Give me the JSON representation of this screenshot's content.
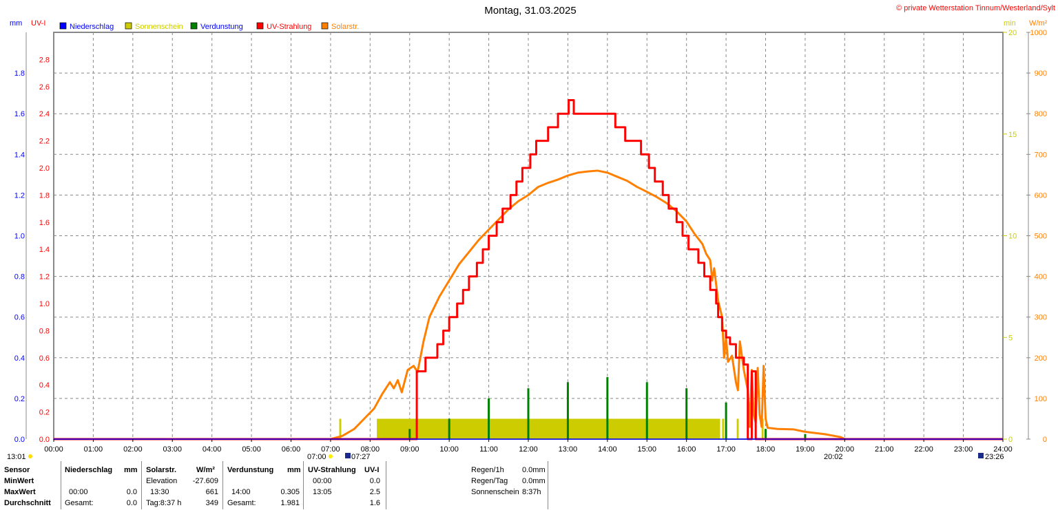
{
  "title": "Montag, 31.03.2025",
  "copyright": "© private Wetterstation Tinnum/Westerland/Sylt",
  "axis_units": {
    "mm": "mm",
    "uv": "UV-I",
    "min": "min",
    "wm2": "W/m²"
  },
  "legend": [
    {
      "label": "Niederschlag",
      "color": "#0000ff",
      "text_color": "#0000ff"
    },
    {
      "label": "Sonnenschein",
      "color": "#cccc00",
      "text_color": "#cccc00"
    },
    {
      "label": "Verdunstung",
      "color": "#008000",
      "text_color": "#0000ff"
    },
    {
      "label": "UV-Strahlung",
      "color": "#ff0000",
      "text_color": "#ff0000"
    },
    {
      "label": "Solarstr.",
      "color": "#ff8000",
      "text_color": "#ff8000"
    }
  ],
  "chart_data": {
    "type": "line",
    "title": "Montag, 31.03.2025",
    "x_range_hours": [
      0,
      24
    ],
    "x_ticks": [
      "00:00",
      "01:00",
      "02:00",
      "03:00",
      "04:00",
      "05:00",
      "06:00",
      "07:00",
      "08:00",
      "09:00",
      "10:00",
      "11:00",
      "12:00",
      "13:00",
      "14:00",
      "15:00",
      "16:00",
      "17:00",
      "18:00",
      "19:00",
      "20:00",
      "21:00",
      "22:00",
      "23:00",
      "24:00"
    ],
    "y_axes": {
      "mm": {
        "range": [
          0,
          2.0
        ],
        "ticks": [
          "0.0",
          "0.2",
          "0.4",
          "0.6",
          "0.8",
          "1.0",
          "1.2",
          "1.4",
          "1.6",
          "1.8"
        ]
      },
      "uv": {
        "range": [
          0,
          3.0
        ],
        "ticks": [
          "0.0",
          "0.2",
          "0.4",
          "0.6",
          "0.8",
          "1.0",
          "1.2",
          "1.4",
          "1.6",
          "1.8",
          "2.0",
          "2.2",
          "2.4",
          "2.6",
          "2.8"
        ]
      },
      "min": {
        "range": [
          0,
          20
        ],
        "ticks": [
          "0",
          "5",
          "10",
          "15",
          "20"
        ]
      },
      "wm2": {
        "range": [
          0,
          1000
        ],
        "ticks": [
          "0",
          "100",
          "200",
          "300",
          "400",
          "500",
          "600",
          "700",
          "800",
          "900",
          "1000"
        ]
      }
    },
    "grid": true,
    "series": [
      {
        "name": "Solarstr.",
        "axis": "wm2",
        "color": "#ff8000",
        "points": [
          [
            0,
            0
          ],
          [
            7.0,
            0
          ],
          [
            7.3,
            8
          ],
          [
            7.6,
            25
          ],
          [
            7.9,
            55
          ],
          [
            8.1,
            75
          ],
          [
            8.3,
            110
          ],
          [
            8.5,
            140
          ],
          [
            8.6,
            125
          ],
          [
            8.7,
            145
          ],
          [
            8.8,
            115
          ],
          [
            8.95,
            170
          ],
          [
            9.1,
            180
          ],
          [
            9.2,
            165
          ],
          [
            9.35,
            240
          ],
          [
            9.5,
            300
          ],
          [
            9.75,
            350
          ],
          [
            10.0,
            390
          ],
          [
            10.25,
            430
          ],
          [
            10.5,
            460
          ],
          [
            10.75,
            490
          ],
          [
            11.0,
            515
          ],
          [
            11.25,
            540
          ],
          [
            11.5,
            565
          ],
          [
            11.75,
            585
          ],
          [
            12.0,
            600
          ],
          [
            12.25,
            620
          ],
          [
            12.5,
            630
          ],
          [
            12.75,
            638
          ],
          [
            13.0,
            648
          ],
          [
            13.25,
            655
          ],
          [
            13.5,
            658
          ],
          [
            13.75,
            660
          ],
          [
            14.0,
            655
          ],
          [
            14.25,
            645
          ],
          [
            14.5,
            635
          ],
          [
            14.75,
            620
          ],
          [
            15.0,
            608
          ],
          [
            15.25,
            595
          ],
          [
            15.5,
            580
          ],
          [
            15.75,
            560
          ],
          [
            16.0,
            535
          ],
          [
            16.2,
            505
          ],
          [
            16.4,
            480
          ],
          [
            16.5,
            455
          ],
          [
            16.6,
            440
          ],
          [
            16.65,
            390
          ],
          [
            16.7,
            420
          ],
          [
            16.8,
            340
          ],
          [
            16.9,
            300
          ],
          [
            16.95,
            200
          ],
          [
            17.0,
            250
          ],
          [
            17.05,
            190
          ],
          [
            17.15,
            205
          ],
          [
            17.25,
            140
          ],
          [
            17.3,
            120
          ],
          [
            17.35,
            240
          ],
          [
            17.45,
            170
          ],
          [
            17.55,
            120
          ],
          [
            17.6,
            30
          ],
          [
            17.65,
            170
          ],
          [
            17.7,
            60
          ],
          [
            17.75,
            40
          ],
          [
            17.8,
            175
          ],
          [
            17.85,
            60
          ],
          [
            17.9,
            30
          ],
          [
            17.95,
            180
          ],
          [
            18.0,
            50
          ],
          [
            18.05,
            28
          ],
          [
            18.3,
            25
          ],
          [
            18.7,
            24
          ],
          [
            19.0,
            18
          ],
          [
            19.5,
            12
          ],
          [
            19.9,
            5
          ],
          [
            20.0,
            0
          ],
          [
            24,
            0
          ]
        ]
      },
      {
        "name": "UV-Strahlung",
        "axis": "uv",
        "color": "#ff0000",
        "step": true,
        "points": [
          [
            0,
            0
          ],
          [
            9.15,
            0
          ],
          [
            9.18,
            0.5
          ],
          [
            9.4,
            0.6
          ],
          [
            9.7,
            0.7
          ],
          [
            9.85,
            0.8
          ],
          [
            10.0,
            0.9
          ],
          [
            10.2,
            1.0
          ],
          [
            10.35,
            1.1
          ],
          [
            10.5,
            1.2
          ],
          [
            10.7,
            1.3
          ],
          [
            10.85,
            1.4
          ],
          [
            11.0,
            1.5
          ],
          [
            11.2,
            1.6
          ],
          [
            11.35,
            1.7
          ],
          [
            11.55,
            1.8
          ],
          [
            11.7,
            1.9
          ],
          [
            11.85,
            2.0
          ],
          [
            12.05,
            2.1
          ],
          [
            12.2,
            2.2
          ],
          [
            12.5,
            2.3
          ],
          [
            12.75,
            2.4
          ],
          [
            13.02,
            2.5
          ],
          [
            13.15,
            2.4
          ],
          [
            14.2,
            2.3
          ],
          [
            14.45,
            2.2
          ],
          [
            14.85,
            2.1
          ],
          [
            15.05,
            2.0
          ],
          [
            15.2,
            1.9
          ],
          [
            15.4,
            1.8
          ],
          [
            15.55,
            1.7
          ],
          [
            15.75,
            1.6
          ],
          [
            15.9,
            1.5
          ],
          [
            16.05,
            1.4
          ],
          [
            16.3,
            1.3
          ],
          [
            16.45,
            1.2
          ],
          [
            16.6,
            1.1
          ],
          [
            16.75,
            1.0
          ],
          [
            16.8,
            0.9
          ],
          [
            16.9,
            0.8
          ],
          [
            17.0,
            0.75
          ],
          [
            17.1,
            0.7
          ],
          [
            17.25,
            0.6
          ],
          [
            17.45,
            0.55
          ],
          [
            17.55,
            0.0
          ],
          [
            17.65,
            0.5
          ],
          [
            17.75,
            0.0
          ],
          [
            24,
            0
          ]
        ]
      },
      {
        "name": "Verdunstung",
        "axis": "mm",
        "color": "#008000",
        "type": "bar",
        "points": [
          [
            9,
            0.05
          ],
          [
            10,
            0.1
          ],
          [
            11,
            0.2
          ],
          [
            12,
            0.25
          ],
          [
            13,
            0.28
          ],
          [
            14,
            0.305
          ],
          [
            15,
            0.28
          ],
          [
            16,
            0.25
          ],
          [
            17,
            0.18
          ],
          [
            18,
            0.05
          ],
          [
            19,
            0.025
          ]
        ]
      },
      {
        "name": "Sonnenschein",
        "axis": "min",
        "color": "#cccc00",
        "type": "area",
        "intervals": [
          [
            7.22,
            7.27,
            1.0
          ],
          [
            8.17,
            16.85,
            1.0
          ],
          [
            16.9,
            16.95,
            1.0
          ],
          [
            17.27,
            17.32,
            1.0
          ],
          [
            17.9,
            17.95,
            1.0
          ]
        ]
      },
      {
        "name": "Niederschlag",
        "axis": "mm",
        "color": "#0000ff",
        "points": [
          [
            0,
            0
          ],
          [
            24,
            0
          ]
        ]
      }
    ]
  },
  "markers": {
    "moon_set": "13:01",
    "sunrise_civil": "07:00",
    "sunrise": "07:27",
    "sunset": "20:02",
    "moon_rise": "23:26"
  },
  "table": {
    "headers": [
      "Sensor",
      "Niederschlag",
      "mm",
      "Solarstr.",
      "W/m²",
      "Verdunstung",
      "mm",
      "UV-Strahlung",
      "UV-I"
    ],
    "rows": {
      "min": {
        "label": "MinWert",
        "sol_label": "Elevation",
        "sol_val": "-27.609",
        "uv_time": "00:00",
        "uv_val": "0.0"
      },
      "max": {
        "label": "MaxWert",
        "rain_time": "00:00",
        "rain_val": "0.0",
        "sol_time": "13:30",
        "sol_val": "661",
        "evap_time": "14:00",
        "evap_val": "0.305",
        "uv_time": "13:05",
        "uv_val": "2.5"
      },
      "avg": {
        "label": "Durchschnitt",
        "rain_label": "Gesamt:",
        "rain_val": "0.0",
        "sol_label": "Tag:8:37 h",
        "sol_val": "349",
        "evap_label": "Gesamt:",
        "evap_val": "1.981",
        "uv_val": "1.6"
      }
    },
    "summary": [
      {
        "label": "Regen/1h",
        "value": "0.0mm"
      },
      {
        "label": "Regen/Tag",
        "value": "0.0mm"
      },
      {
        "label": "Sonnenschein",
        "value": "8:37h"
      }
    ]
  }
}
